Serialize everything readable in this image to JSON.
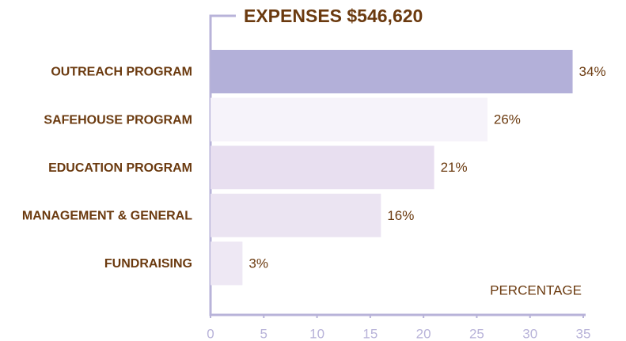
{
  "chart_data": {
    "type": "hbar",
    "title": "EXPENSES $546,620",
    "categories": [
      "OUTREACH PROGRAM",
      "SAFEHOUSE PROGRAM",
      "EDUCATION PROGRAM",
      "MANAGEMENT & GENERAL",
      "FUNDRAISING"
    ],
    "values": [
      34,
      26,
      21,
      16,
      3
    ],
    "value_labels": [
      "34%",
      "26%",
      "21%",
      "16%",
      "3%"
    ],
    "colors": [
      "#b3b0d9",
      "#f6f3fa",
      "#e8dff0",
      "#ebe4f2",
      "#eee8f4"
    ],
    "x_label": "PERCENTAGE",
    "xlim": [
      0,
      35
    ],
    "xticks": [
      0,
      5,
      10,
      15,
      20,
      25,
      30,
      35
    ]
  }
}
